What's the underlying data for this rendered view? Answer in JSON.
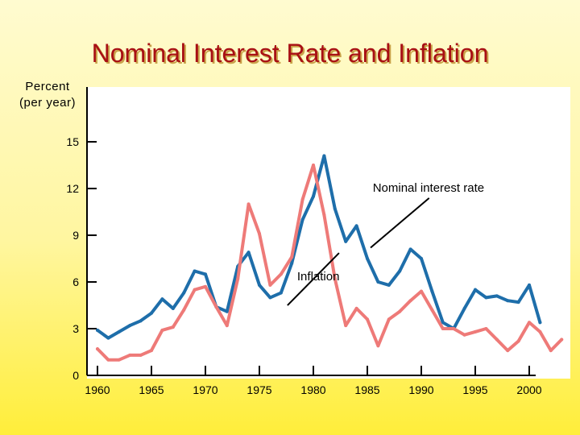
{
  "chart_data": {
    "type": "line",
    "title": "Nominal Interest Rate and Inflation",
    "ylabel_line1": "Percent",
    "ylabel_line2": "(per year)",
    "xlabel": "",
    "xlim": [
      1960,
      2003
    ],
    "ylim": [
      0,
      18
    ],
    "y_ticks": [
      0,
      3,
      6,
      9,
      12,
      15
    ],
    "x_ticks": [
      1960,
      1965,
      1970,
      1975,
      1980,
      1985,
      1990,
      1995,
      2000
    ],
    "grid": false,
    "series": [
      {
        "name": "Nominal interest rate",
        "color": "#1e6eaa",
        "points": [
          [
            1960,
            2.9
          ],
          [
            1961,
            2.4
          ],
          [
            1962,
            2.8
          ],
          [
            1963,
            3.2
          ],
          [
            1964,
            3.5
          ],
          [
            1965,
            4.0
          ],
          [
            1966,
            4.9
          ],
          [
            1967,
            4.3
          ],
          [
            1968,
            5.3
          ],
          [
            1969,
            6.7
          ],
          [
            1970,
            6.5
          ],
          [
            1971,
            4.4
          ],
          [
            1972,
            4.1
          ],
          [
            1973,
            7.0
          ],
          [
            1974,
            7.9
          ],
          [
            1975,
            5.8
          ],
          [
            1976,
            5.0
          ],
          [
            1977,
            5.3
          ],
          [
            1978,
            7.2
          ],
          [
            1979,
            10.0
          ],
          [
            1980,
            11.5
          ],
          [
            1981,
            14.1
          ],
          [
            1982,
            10.7
          ],
          [
            1983,
            8.6
          ],
          [
            1984,
            9.6
          ],
          [
            1985,
            7.5
          ],
          [
            1986,
            6.0
          ],
          [
            1987,
            5.8
          ],
          [
            1988,
            6.7
          ],
          [
            1989,
            8.1
          ],
          [
            1990,
            7.5
          ],
          [
            1991,
            5.4
          ],
          [
            1992,
            3.4
          ],
          [
            1993,
            3.0
          ],
          [
            1994,
            4.3
          ],
          [
            1995,
            5.5
          ],
          [
            1996,
            5.0
          ],
          [
            1997,
            5.1
          ],
          [
            1998,
            4.8
          ],
          [
            1999,
            4.7
          ],
          [
            2000,
            5.8
          ],
          [
            2001,
            3.4
          ]
        ]
      },
      {
        "name": "Inflation",
        "color": "#ee7a78",
        "points": [
          [
            1960,
            1.7
          ],
          [
            1961,
            1.0
          ],
          [
            1962,
            1.0
          ],
          [
            1963,
            1.3
          ],
          [
            1964,
            1.3
          ],
          [
            1965,
            1.6
          ],
          [
            1966,
            2.9
          ],
          [
            1967,
            3.1
          ],
          [
            1968,
            4.2
          ],
          [
            1969,
            5.5
          ],
          [
            1970,
            5.7
          ],
          [
            1971,
            4.4
          ],
          [
            1972,
            3.2
          ],
          [
            1973,
            6.2
          ],
          [
            1974,
            11.0
          ],
          [
            1975,
            9.1
          ],
          [
            1976,
            5.8
          ],
          [
            1977,
            6.5
          ],
          [
            1978,
            7.6
          ],
          [
            1979,
            11.3
          ],
          [
            1980,
            13.5
          ],
          [
            1981,
            10.3
          ],
          [
            1982,
            6.2
          ],
          [
            1983,
            3.2
          ],
          [
            1984,
            4.3
          ],
          [
            1985,
            3.6
          ],
          [
            1986,
            1.9
          ],
          [
            1987,
            3.6
          ],
          [
            1988,
            4.1
          ],
          [
            1989,
            4.8
          ],
          [
            1990,
            5.4
          ],
          [
            1991,
            4.2
          ],
          [
            1992,
            3.0
          ],
          [
            1993,
            3.0
          ],
          [
            1994,
            2.6
          ],
          [
            1995,
            2.8
          ],
          [
            1996,
            3.0
          ],
          [
            1997,
            2.3
          ],
          [
            1998,
            1.6
          ],
          [
            1999,
            2.2
          ],
          [
            2000,
            3.4
          ],
          [
            2001,
            2.8
          ],
          [
            2002,
            1.6
          ],
          [
            2003,
            2.3
          ]
        ]
      }
    ],
    "annotations": [
      {
        "text": "Nominal interest rate",
        "series": "Nominal interest rate",
        "label_anchor": [
          1985.5,
          11.8
        ],
        "arrow_to": [
          1985.3,
          8.2
        ]
      },
      {
        "text": "Inflation",
        "series": "Inflation",
        "label_anchor": [
          1978.5,
          6.1
        ],
        "arrow_to": [
          1977.6,
          4.5
        ]
      }
    ]
  }
}
